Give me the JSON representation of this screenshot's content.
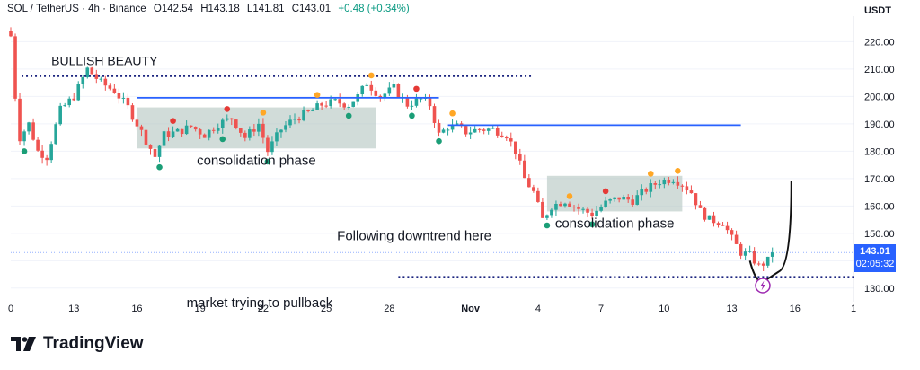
{
  "header": {
    "symbol": "SOL / TetherUS · 4h · Binance",
    "open": "O142.54",
    "high": "H143.18",
    "low": "L141.81",
    "close": "C143.01",
    "change": "+0.48 (+0.34%)"
  },
  "axis_unit": "USDT",
  "current_price": "143.01",
  "countdown": "02:05:32",
  "brand": "TradingView",
  "colors": {
    "up": "#26a69a",
    "down": "#ef5350",
    "level": "#2962ff",
    "box": "#b2c4c0",
    "red_dot": "#e53935",
    "orange_dot": "#ffa726",
    "green_dot": "#1b9e77",
    "signal": "#9c27b0"
  },
  "chart_data": {
    "type": "candlestick",
    "title": "",
    "xlabel": "",
    "ylabel": "",
    "ylim": [
      126,
      228
    ],
    "y_ticks": [
      130,
      140,
      150,
      160,
      170,
      180,
      190,
      200,
      210,
      220
    ],
    "x_ticks": [
      "0",
      "13",
      "16",
      "19",
      "22",
      "25",
      "28",
      "Nov",
      "4",
      "7",
      "10",
      "13",
      "16",
      "1"
    ],
    "x_tick_index": [
      0,
      70,
      140,
      210,
      280,
      350,
      420,
      510,
      585,
      655,
      725,
      800,
      870,
      935
    ],
    "path": [
      [
        0,
        222
      ],
      [
        5,
        200
      ],
      [
        10,
        185
      ],
      [
        20,
        190
      ],
      [
        30,
        180
      ],
      [
        40,
        178
      ],
      [
        55,
        195
      ],
      [
        70,
        200
      ],
      [
        85,
        210
      ],
      [
        100,
        205
      ],
      [
        115,
        202
      ],
      [
        130,
        196
      ],
      [
        140,
        190
      ],
      [
        150,
        184
      ],
      [
        160,
        178
      ],
      [
        170,
        186
      ],
      [
        185,
        187
      ],
      [
        200,
        189
      ],
      [
        215,
        186
      ],
      [
        230,
        190
      ],
      [
        245,
        192
      ],
      [
        260,
        185
      ],
      [
        275,
        190
      ],
      [
        285,
        180
      ],
      [
        300,
        188
      ],
      [
        315,
        192
      ],
      [
        330,
        194
      ],
      [
        345,
        197
      ],
      [
        360,
        198
      ],
      [
        375,
        197
      ],
      [
        385,
        200
      ],
      [
        395,
        205
      ],
      [
        410,
        200
      ],
      [
        425,
        203
      ],
      [
        440,
        197
      ],
      [
        455,
        199
      ],
      [
        465,
        197
      ],
      [
        475,
        186
      ],
      [
        485,
        189
      ],
      [
        495,
        189
      ],
      [
        505,
        187
      ],
      [
        520,
        188
      ],
      [
        535,
        188
      ],
      [
        550,
        186
      ],
      [
        560,
        180
      ],
      [
        570,
        170
      ],
      [
        580,
        165
      ],
      [
        590,
        155
      ],
      [
        600,
        160
      ],
      [
        615,
        162
      ],
      [
        630,
        159
      ],
      [
        645,
        157
      ],
      [
        660,
        161
      ],
      [
        675,
        163
      ],
      [
        690,
        162
      ],
      [
        705,
        166
      ],
      [
        720,
        169
      ],
      [
        735,
        170
      ],
      [
        745,
        168
      ],
      [
        755,
        165
      ],
      [
        765,
        158
      ],
      [
        775,
        155
      ],
      [
        790,
        154
      ],
      [
        800,
        148
      ],
      [
        810,
        143
      ],
      [
        820,
        142
      ],
      [
        830,
        138
      ],
      [
        840,
        140
      ],
      [
        845,
        143.01
      ]
    ],
    "levels": [
      {
        "style": "dotted",
        "price": 207.5,
        "from": 12,
        "to": 580
      },
      {
        "style": "solid",
        "price": 199.5,
        "from": 140,
        "to": 475
      },
      {
        "style": "solid",
        "price": 189.5,
        "from": 485,
        "to": 810
      },
      {
        "style": "dotted",
        "price": 134,
        "from": 430,
        "to": 935
      }
    ],
    "zones": [
      {
        "label": "consolidation phase",
        "from": 140,
        "to": 405,
        "low": 181,
        "high": 196
      },
      {
        "label": "consolidation phase",
        "from": 595,
        "to": 745,
        "low": 158,
        "high": 171
      }
    ],
    "annotations": [
      {
        "text": "BULLISH BEAUTY",
        "index": 45,
        "price": 211.5
      },
      {
        "text": "Following downtrend here",
        "index": 362,
        "price": 147.5
      },
      {
        "text": "market trying to pullback",
        "index": 195,
        "price": 123
      }
    ]
  }
}
